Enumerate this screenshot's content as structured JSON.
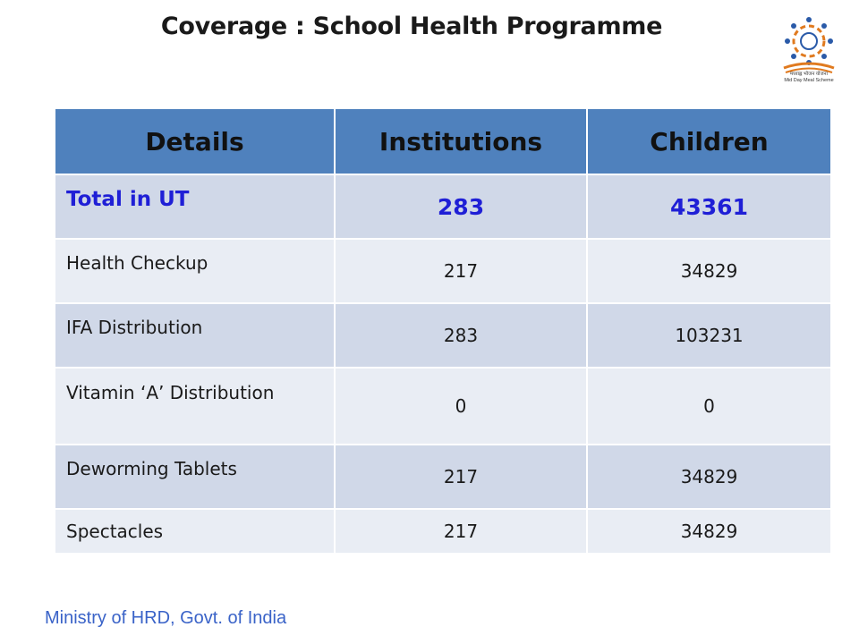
{
  "title": "Coverage : School Health Programme",
  "logo": {
    "icon": "mid-day-meal-logo",
    "text_line1": "मध्याह्न भोजन योजना",
    "text_line2": "Mid Day Meal Scheme"
  },
  "table": {
    "headers": [
      "Details",
      "Institutions",
      "Children"
    ],
    "rows": [
      {
        "details": "Total in UT",
        "institutions": "283",
        "children": "43361"
      },
      {
        "details": "Health Checkup",
        "institutions": "217",
        "children": "34829"
      },
      {
        "details": "IFA Distribution",
        "institutions": "283",
        "children": "103231"
      },
      {
        "details": "Vitamin ‘A’ Distribution",
        "institutions": "0",
        "children": "0"
      },
      {
        "details": "Deworming Tablets",
        "institutions": "217",
        "children": "34829"
      },
      {
        "details": "Spectacles",
        "institutions": "217",
        "children": "34829"
      }
    ]
  },
  "footer": "Ministry of HRD, Govt. of India",
  "colors": {
    "header_bg": "#4f81bd",
    "row_dark": "#d0d8e8",
    "row_light": "#e9edf4",
    "highlight_text": "#1f1fd6",
    "footer_text": "#3a63c8"
  }
}
